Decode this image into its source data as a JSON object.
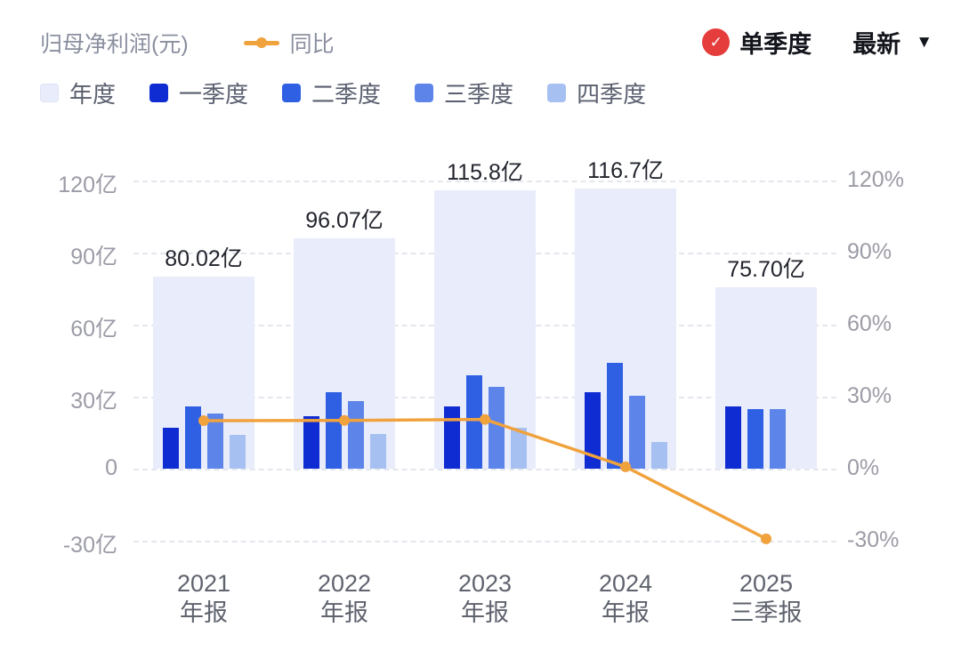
{
  "header": {
    "title": "归母净利润(元)",
    "line_legend": "同比",
    "quarter_mode_label": "单季度",
    "period_dropdown_label": "最新"
  },
  "colors": {
    "annual": "#e9edfb",
    "q1": "#0e2cd2",
    "q2": "#2f5fe3",
    "q3": "#5d84e8",
    "q4": "#a6c0f2",
    "line": "#f0a23d",
    "badge": "#e53c3c"
  },
  "legend": [
    {
      "label": "年度",
      "key": "annual"
    },
    {
      "label": "一季度",
      "key": "q1"
    },
    {
      "label": "二季度",
      "key": "q2"
    },
    {
      "label": "三季度",
      "key": "q3"
    },
    {
      "label": "四季度",
      "key": "q4"
    }
  ],
  "chart_data": {
    "type": "bar",
    "title": "归母净利润(元)",
    "categories": [
      "2021 年报",
      "2022 年报",
      "2023 年报",
      "2024 年报",
      "2025 三季报"
    ],
    "category_lines": [
      [
        "2021",
        "年报"
      ],
      [
        "2022",
        "年报"
      ],
      [
        "2023",
        "年报"
      ],
      [
        "2024",
        "年报"
      ],
      [
        "2025",
        "三季报"
      ]
    ],
    "annual_series": {
      "name": "年度",
      "values": [
        80.02,
        96.07,
        115.8,
        116.7,
        75.7
      ],
      "labels": [
        "80.02亿",
        "96.07亿",
        "115.8亿",
        "116.7亿",
        "75.70亿"
      ]
    },
    "quarter_series": [
      {
        "name": "一季度",
        "values": [
          17,
          22,
          26,
          32,
          26
        ]
      },
      {
        "name": "二季度",
        "values": [
          26,
          32,
          39,
          44,
          25
        ]
      },
      {
        "name": "三季度",
        "values": [
          23,
          28,
          34,
          30.5,
          25
        ]
      },
      {
        "name": "四季度",
        "values": [
          14,
          14.5,
          17,
          11,
          null
        ]
      }
    ],
    "line_series": {
      "name": "同比",
      "unit": "%",
      "values": [
        20,
        20.1,
        20.5,
        0.8,
        -29.2
      ]
    },
    "y_left": {
      "unit": "亿",
      "ticks": [
        120,
        90,
        60,
        30,
        0,
        -30
      ],
      "tick_labels": [
        "120亿",
        "90亿",
        "60亿",
        "30亿",
        "0",
        "-30亿"
      ]
    },
    "y_right": {
      "unit": "%",
      "tick_labels": [
        "120%",
        "90%",
        "60%",
        "30%",
        "0%",
        "-30%"
      ]
    },
    "ylim": [
      -30,
      130
    ],
    "grid": "dashed-horizontal",
    "legend_position": "top-left"
  }
}
